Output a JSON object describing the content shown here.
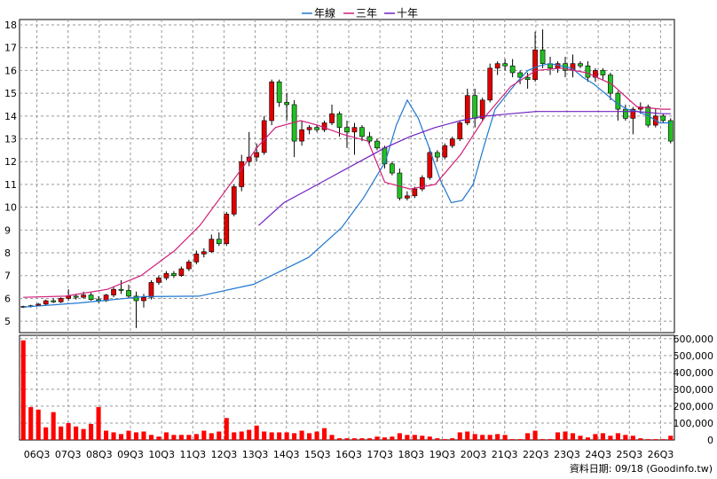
{
  "chart_data": {
    "type": "candlestick",
    "legend": [
      {
        "name": "年線",
        "color": "#1f77d0"
      },
      {
        "name": "三年",
        "color": "#d0207a"
      },
      {
        "name": "十年",
        "color": "#7020c0"
      }
    ],
    "price_axis": {
      "ylim": [
        4.5,
        18
      ],
      "ticks": [
        5,
        6,
        7,
        8,
        9,
        10,
        11,
        12,
        13,
        14,
        15,
        16,
        17,
        18
      ]
    },
    "volume_axis": {
      "ylim": [
        0,
        620000
      ],
      "ticks": [
        0,
        100000,
        200000,
        300000,
        400000,
        500000,
        600000
      ],
      "tick_labels": [
        "0",
        "100,000",
        "200,000",
        "300,000",
        "400,000",
        "500,000",
        "600,000"
      ]
    },
    "x_labels": [
      "06Q3",
      "07Q3",
      "08Q3",
      "09Q3",
      "10Q3",
      "11Q3",
      "12Q3",
      "13Q3",
      "14Q3",
      "15Q3",
      "16Q3",
      "17Q3",
      "18Q3",
      "19Q3",
      "20Q3",
      "21Q3",
      "22Q3",
      "23Q3",
      "24Q3",
      "25Q3",
      "26Q3"
    ],
    "footer": "資料日期: 09/18 (Goodinfo.tw)",
    "candles": [
      [
        5.62,
        5.68,
        5.58,
        5.65
      ],
      [
        5.65,
        5.72,
        5.6,
        5.68
      ],
      [
        5.7,
        5.8,
        5.65,
        5.75
      ],
      [
        5.75,
        5.95,
        5.7,
        5.9
      ],
      [
        5.9,
        6.0,
        5.8,
        5.85
      ],
      [
        5.85,
        6.05,
        5.8,
        6.0
      ],
      [
        6.0,
        6.4,
        5.9,
        6.1
      ],
      [
        6.1,
        6.2,
        5.95,
        6.05
      ],
      [
        6.05,
        6.3,
        6.0,
        6.15
      ],
      [
        6.15,
        6.25,
        5.9,
        5.95
      ],
      [
        5.95,
        6.1,
        5.8,
        5.9
      ],
      [
        5.9,
        6.2,
        5.85,
        6.15
      ],
      [
        6.15,
        6.5,
        6.05,
        6.4
      ],
      [
        6.4,
        6.8,
        6.2,
        6.35
      ],
      [
        6.35,
        6.6,
        6.0,
        6.1
      ],
      [
        6.1,
        6.3,
        4.7,
        5.9
      ],
      [
        5.9,
        6.2,
        5.6,
        6.05
      ],
      [
        6.05,
        6.8,
        5.95,
        6.7
      ],
      [
        6.7,
        7.0,
        6.6,
        6.9
      ],
      [
        6.9,
        7.2,
        6.8,
        7.1
      ],
      [
        7.1,
        7.2,
        6.9,
        7.0
      ],
      [
        7.0,
        7.4,
        6.95,
        7.3
      ],
      [
        7.3,
        7.7,
        7.2,
        7.6
      ],
      [
        7.6,
        8.1,
        7.5,
        7.95
      ],
      [
        7.95,
        8.2,
        7.8,
        8.05
      ],
      [
        8.05,
        8.8,
        8.0,
        8.6
      ],
      [
        8.6,
        8.9,
        8.3,
        8.4
      ],
      [
        8.4,
        9.8,
        8.3,
        9.7
      ],
      [
        9.7,
        11.0,
        9.6,
        10.9
      ],
      [
        10.9,
        12.3,
        10.7,
        12.0
      ],
      [
        12.0,
        13.3,
        11.8,
        12.2
      ],
      [
        12.2,
        12.8,
        12.0,
        12.4
      ],
      [
        12.4,
        14.0,
        12.3,
        13.8
      ],
      [
        13.8,
        15.6,
        13.6,
        15.5
      ],
      [
        15.5,
        15.6,
        14.4,
        14.6
      ],
      [
        14.6,
        15.0,
        13.8,
        14.5
      ],
      [
        14.5,
        14.7,
        12.2,
        12.9
      ],
      [
        12.9,
        13.8,
        12.7,
        13.4
      ],
      [
        13.4,
        13.6,
        13.2,
        13.5
      ],
      [
        13.5,
        13.6,
        13.3,
        13.4
      ],
      [
        13.4,
        13.8,
        13.3,
        13.7
      ],
      [
        13.7,
        14.5,
        13.6,
        14.1
      ],
      [
        14.1,
        14.2,
        13.1,
        13.5
      ],
      [
        13.5,
        13.8,
        12.6,
        13.3
      ],
      [
        13.3,
        13.7,
        12.3,
        13.5
      ],
      [
        13.5,
        13.6,
        12.9,
        13.1
      ],
      [
        13.1,
        13.3,
        12.8,
        12.9
      ],
      [
        12.9,
        13.0,
        12.5,
        12.6
      ],
      [
        12.6,
        12.7,
        11.7,
        11.9
      ],
      [
        11.9,
        12.0,
        11.4,
        11.5
      ],
      [
        11.5,
        11.7,
        10.3,
        10.4
      ],
      [
        10.4,
        10.7,
        10.3,
        10.5
      ],
      [
        10.5,
        10.9,
        10.4,
        10.8
      ],
      [
        10.8,
        11.4,
        10.7,
        11.3
      ],
      [
        11.3,
        12.6,
        11.2,
        12.4
      ],
      [
        12.4,
        12.5,
        12.0,
        12.2
      ],
      [
        12.2,
        12.8,
        12.1,
        12.7
      ],
      [
        12.7,
        13.1,
        12.6,
        13.0
      ],
      [
        13.0,
        13.8,
        12.9,
        13.7
      ],
      [
        13.7,
        15.2,
        13.6,
        14.9
      ],
      [
        14.9,
        15.2,
        13.5,
        13.9
      ],
      [
        13.9,
        14.8,
        13.8,
        14.7
      ],
      [
        14.7,
        16.3,
        14.6,
        16.1
      ],
      [
        16.1,
        16.4,
        15.8,
        16.3
      ],
      [
        16.3,
        16.5,
        16.0,
        16.2
      ],
      [
        16.2,
        16.5,
        15.7,
        15.9
      ],
      [
        15.9,
        16.0,
        15.4,
        15.7
      ],
      [
        15.7,
        15.9,
        15.2,
        15.6
      ],
      [
        15.6,
        17.7,
        15.5,
        16.9
      ],
      [
        16.9,
        17.8,
        16.1,
        16.3
      ],
      [
        16.3,
        16.6,
        15.8,
        16.1
      ],
      [
        16.1,
        16.4,
        15.9,
        16.3
      ],
      [
        16.3,
        16.6,
        15.7,
        16.0
      ],
      [
        16.0,
        16.7,
        15.7,
        16.3
      ],
      [
        16.3,
        16.4,
        16.1,
        16.2
      ],
      [
        16.2,
        16.4,
        15.5,
        15.7
      ],
      [
        15.7,
        16.1,
        15.5,
        16.0
      ],
      [
        16.0,
        16.1,
        15.6,
        15.8
      ],
      [
        15.8,
        15.9,
        14.7,
        15.0
      ],
      [
        15.0,
        15.1,
        13.8,
        14.3
      ],
      [
        14.3,
        14.5,
        13.8,
        13.9
      ],
      [
        13.9,
        14.4,
        13.2,
        14.3
      ],
      [
        14.3,
        14.6,
        14.1,
        14.4
      ],
      [
        14.4,
        14.5,
        13.5,
        13.6
      ],
      [
        13.6,
        14.3,
        13.5,
        14.0
      ],
      [
        14.0,
        14.1,
        13.7,
        13.8
      ],
      [
        13.8,
        13.9,
        12.8,
        12.9
      ]
    ],
    "volumes": [
      590000,
      195000,
      180000,
      75000,
      165000,
      80000,
      100000,
      80000,
      65000,
      95000,
      195000,
      55000,
      45000,
      35000,
      55000,
      45000,
      50000,
      30000,
      20000,
      45000,
      30000,
      30000,
      30000,
      35000,
      55000,
      40000,
      50000,
      130000,
      45000,
      50000,
      60000,
      85000,
      50000,
      45000,
      45000,
      45000,
      40000,
      55000,
      40000,
      50000,
      70000,
      30000,
      10000,
      10000,
      10000,
      10000,
      10000,
      20000,
      15000,
      20000,
      40000,
      30000,
      30000,
      25000,
      20000,
      10000,
      5000,
      10000,
      45000,
      50000,
      35000,
      30000,
      30000,
      35000,
      30000,
      5000,
      5000,
      40000,
      55000,
      5000,
      5000,
      45000,
      50000,
      40000,
      25000,
      15000,
      35000,
      40000,
      25000,
      40000,
      30000,
      25000,
      10000,
      5000,
      5000,
      5000,
      25000
    ],
    "ma_year": [
      [
        0,
        5.62
      ],
      [
        5,
        5.8
      ],
      [
        11,
        6.08
      ],
      [
        16,
        6.1
      ],
      [
        21,
        6.62
      ],
      [
        26,
        7.8
      ],
      [
        29,
        9.1
      ],
      [
        31,
        10.4
      ],
      [
        33,
        12.0
      ],
      [
        34,
        13.6
      ],
      [
        35,
        14.7
      ],
      [
        36,
        13.9
      ],
      [
        37,
        12.6
      ],
      [
        38,
        11.2
      ],
      [
        39,
        10.2
      ],
      [
        40,
        10.3
      ],
      [
        41,
        11.0
      ],
      [
        42,
        12.7
      ],
      [
        43,
        14.3
      ],
      [
        44,
        14.9
      ],
      [
        45,
        15.5
      ],
      [
        46,
        16.0
      ],
      [
        47,
        16.2
      ],
      [
        48,
        16.3
      ],
      [
        49,
        16.2
      ],
      [
        50,
        16.1
      ],
      [
        51,
        15.7
      ],
      [
        52,
        15.4
      ],
      [
        53,
        15.0
      ],
      [
        54,
        14.6
      ],
      [
        55,
        14.3
      ],
      [
        56,
        14.2
      ],
      [
        57,
        14.0
      ],
      [
        58,
        13.7
      ],
      [
        59,
        13.7
      ]
    ],
    "ma_3y": [
      [
        0,
        6.05
      ],
      [
        5,
        6.1
      ],
      [
        10,
        6.4
      ],
      [
        14,
        7.0
      ],
      [
        18,
        8.1
      ],
      [
        21,
        9.2
      ],
      [
        25,
        11.2
      ],
      [
        28,
        12.7
      ],
      [
        30,
        13.5
      ],
      [
        33,
        13.8
      ],
      [
        35,
        13.6
      ],
      [
        38,
        13.2
      ],
      [
        41,
        12.9
      ],
      [
        43,
        11.1
      ],
      [
        46,
        10.8
      ],
      [
        49,
        11.0
      ],
      [
        52,
        12.3
      ],
      [
        55,
        14.0
      ],
      [
        58,
        15.3
      ],
      [
        61,
        16.0
      ],
      [
        64,
        16.1
      ],
      [
        67,
        15.9
      ],
      [
        70,
        15.4
      ],
      [
        73,
        14.4
      ],
      [
        76,
        14.3
      ],
      [
        77,
        14.3
      ]
    ],
    "ma_10y": [
      [
        28,
        9.2
      ],
      [
        31,
        10.2
      ],
      [
        34,
        10.8
      ],
      [
        37,
        11.4
      ],
      [
        40,
        12.0
      ],
      [
        43,
        12.6
      ],
      [
        46,
        13.1
      ],
      [
        49,
        13.5
      ],
      [
        52,
        13.8
      ],
      [
        55,
        14.0
      ],
      [
        58,
        14.1
      ],
      [
        61,
        14.2
      ],
      [
        64,
        14.2
      ],
      [
        67,
        14.2
      ],
      [
        70,
        14.2
      ],
      [
        73,
        14.2
      ],
      [
        76,
        14.1
      ],
      [
        77,
        14.1
      ]
    ]
  }
}
